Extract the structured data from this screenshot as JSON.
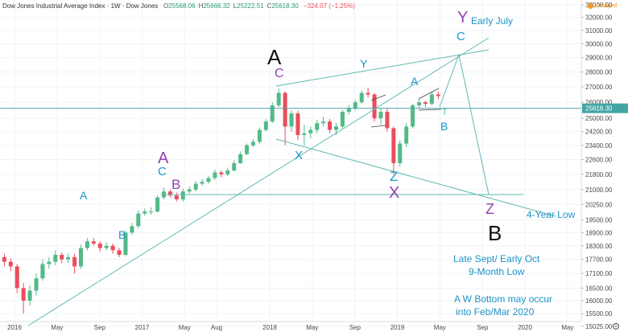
{
  "header": {
    "title": "Dow Jones Industrial Average Index · 1W · Dow Jones",
    "ohlc": [
      {
        "key": "O",
        "value": "25568.06"
      },
      {
        "key": "H",
        "value": "25666.32"
      },
      {
        "key": "L",
        "value": "25222.51"
      },
      {
        "key": "C",
        "value": "25618.30"
      }
    ],
    "change": "−324.07 (−1.25%)",
    "status": "Delayed"
  },
  "chart_data": {
    "type": "candlestick",
    "log_scale": true,
    "grid": true,
    "up_color": "#53b987",
    "down_color": "#eb4d5c",
    "xlim": [
      2015.886,
      2020.441
    ],
    "ylim": [
      14820,
      33390
    ],
    "xticks": [
      {
        "value": 2016,
        "label": "2016"
      },
      {
        "value": 2016.333,
        "label": "May"
      },
      {
        "value": 2016.667,
        "label": "Sep"
      },
      {
        "value": 2017,
        "label": "2017"
      },
      {
        "value": 2017.333,
        "label": "May"
      },
      {
        "value": 2017.583,
        "label": "Aug"
      },
      {
        "value": 2018,
        "label": "2018"
      },
      {
        "value": 2018.333,
        "label": "May"
      },
      {
        "value": 2018.667,
        "label": "Sep"
      },
      {
        "value": 2019,
        "label": "2019"
      },
      {
        "value": 2019.333,
        "label": "May"
      },
      {
        "value": 2019.667,
        "label": "Sep"
      },
      {
        "value": 2020,
        "label": "2020"
      },
      {
        "value": 2020.333,
        "label": "May"
      }
    ],
    "yticks": [
      {
        "value": 33000,
        "label": "33000.00"
      },
      {
        "value": 32000,
        "label": "32000.00"
      },
      {
        "value": 31000,
        "label": "31000.00"
      },
      {
        "value": 30000,
        "label": "30000.00"
      },
      {
        "value": 29000,
        "label": "29000.00"
      },
      {
        "value": 28000,
        "label": "28000.00"
      },
      {
        "value": 27000,
        "label": "27000.00"
      },
      {
        "value": 26000,
        "label": "26000.00"
      },
      {
        "value": 25000,
        "label": "25000.00"
      },
      {
        "value": 24200,
        "label": "24200.00"
      },
      {
        "value": 23400,
        "label": "23400.00"
      },
      {
        "value": 22600,
        "label": "22600.00"
      },
      {
        "value": 21800,
        "label": "21800.00"
      },
      {
        "value": 21000,
        "label": "21000.00"
      },
      {
        "value": 20250,
        "label": "20250.00"
      },
      {
        "value": 19500,
        "label": "19500.00"
      },
      {
        "value": 18900,
        "label": "18900.00"
      },
      {
        "value": 18300,
        "label": "18300.00"
      },
      {
        "value": 17700,
        "label": "17700.00"
      },
      {
        "value": 17100,
        "label": "17100.00"
      },
      {
        "value": 16500,
        "label": "16500.00"
      },
      {
        "value": 16000,
        "label": "16000.00"
      },
      {
        "value": 15500,
        "label": "15500.00"
      },
      {
        "value": 15025,
        "label": "15025.00"
      }
    ],
    "last_price": {
      "value": 25618.3,
      "label": "25618.30"
    },
    "x": [
      2015.92,
      2015.97,
      2016.02,
      2016.07,
      2016.12,
      2016.17,
      2016.22,
      2016.27,
      2016.32,
      2016.37,
      2016.42,
      2016.47,
      2016.52,
      2016.57,
      2016.62,
      2016.67,
      2016.72,
      2016.77,
      2016.82,
      2016.87,
      2016.92,
      2016.97,
      2017.02,
      2017.07,
      2017.12,
      2017.17,
      2017.22,
      2017.27,
      2017.32,
      2017.37,
      2017.42,
      2017.47,
      2017.52,
      2017.57,
      2017.62,
      2017.67,
      2017.72,
      2017.77,
      2017.82,
      2017.87,
      2017.92,
      2017.97,
      2018.02,
      2018.07,
      2018.12,
      2018.17,
      2018.22,
      2018.27,
      2018.32,
      2018.37,
      2018.42,
      2018.47,
      2018.52,
      2018.57,
      2018.62,
      2018.67,
      2018.72,
      2018.77,
      2018.82,
      2018.87,
      2018.92,
      2018.97,
      2019.02,
      2019.07,
      2019.12,
      2019.17,
      2019.22,
      2019.27,
      2019.32,
      2019.37
    ],
    "ohlc": [
      [
        17800,
        17950,
        17400,
        17600
      ],
      [
        17600,
        17750,
        17200,
        17400
      ],
      [
        17400,
        17500,
        16300,
        16500
      ],
      [
        16500,
        16700,
        15500,
        16000
      ],
      [
        16000,
        16600,
        15800,
        16400
      ],
      [
        16400,
        17100,
        16200,
        16900
      ],
      [
        16900,
        17700,
        16800,
        17500
      ],
      [
        17500,
        17800,
        17300,
        17600
      ],
      [
        17600,
        18100,
        17450,
        17900
      ],
      [
        17900,
        18000,
        17550,
        17700
      ],
      [
        17700,
        17950,
        17550,
        17800
      ],
      [
        17800,
        17950,
        17100,
        17400
      ],
      [
        17400,
        18350,
        17300,
        18200
      ],
      [
        18200,
        18650,
        18100,
        18500
      ],
      [
        18500,
        18650,
        18300,
        18400
      ],
      [
        18400,
        18500,
        18050,
        18200
      ],
      [
        18200,
        18450,
        18100,
        18300
      ],
      [
        18300,
        18400,
        17950,
        18100
      ],
      [
        18100,
        18200,
        17800,
        17900
      ],
      [
        17900,
        19000,
        17850,
        18900
      ],
      [
        18900,
        19350,
        18800,
        19200
      ],
      [
        19200,
        19950,
        19100,
        19800
      ],
      [
        19800,
        20050,
        19700,
        19900
      ],
      [
        19900,
        20100,
        19750,
        19900
      ],
      [
        19900,
        20700,
        19850,
        20600
      ],
      [
        20600,
        21100,
        20500,
        20900
      ],
      [
        20900,
        21000,
        20600,
        20700
      ],
      [
        20700,
        20850,
        20400,
        20500
      ],
      [
        20500,
        21050,
        20400,
        20900
      ],
      [
        20900,
        21150,
        20800,
        21000
      ],
      [
        21000,
        21450,
        20900,
        21300
      ],
      [
        21300,
        21550,
        21200,
        21400
      ],
      [
        21400,
        21700,
        21300,
        21600
      ],
      [
        21600,
        22050,
        21500,
        21900
      ],
      [
        21900,
        22000,
        21650,
        21800
      ],
      [
        21800,
        22150,
        21700,
        22000
      ],
      [
        22000,
        22550,
        21950,
        22400
      ],
      [
        22400,
        23050,
        22350,
        22900
      ],
      [
        22900,
        23500,
        22850,
        23400
      ],
      [
        23400,
        23750,
        23300,
        23600
      ],
      [
        23600,
        24450,
        23500,
        24300
      ],
      [
        24300,
        24950,
        24200,
        24800
      ],
      [
        24800,
        26000,
        24700,
        25800
      ],
      [
        25800,
        26900,
        25700,
        26600
      ],
      [
        26600,
        26700,
        23400,
        24500
      ],
      [
        24500,
        25500,
        24200,
        25300
      ],
      [
        25300,
        25450,
        23700,
        24000
      ],
      [
        24000,
        24600,
        23400,
        24100
      ],
      [
        24100,
        24500,
        23800,
        24300
      ],
      [
        24300,
        24900,
        24100,
        24700
      ],
      [
        24700,
        25100,
        24500,
        24800
      ],
      [
        24800,
        24950,
        24100,
        24300
      ],
      [
        24300,
        24700,
        24000,
        24500
      ],
      [
        24500,
        25500,
        24400,
        25400
      ],
      [
        25400,
        25800,
        25200,
        25600
      ],
      [
        25600,
        26150,
        25500,
        26000
      ],
      [
        26000,
        26750,
        25900,
        26600
      ],
      [
        26600,
        26950,
        26300,
        26500
      ],
      [
        26500,
        26600,
        24800,
        25000
      ],
      [
        25000,
        25600,
        24600,
        25400
      ],
      [
        25400,
        25600,
        24200,
        24400
      ],
      [
        24400,
        24500,
        21800,
        22400
      ],
      [
        22400,
        23700,
        22200,
        23500
      ],
      [
        23500,
        24700,
        23300,
        24500
      ],
      [
        24500,
        25900,
        24400,
        25800
      ],
      [
        25800,
        26200,
        25600,
        26000
      ],
      [
        26000,
        26100,
        25700,
        25900
      ],
      [
        25900,
        26700,
        25800,
        26500
      ],
      [
        26500,
        26700,
        26200,
        26400
      ],
      [
        25568.06,
        25666.32,
        25222.51,
        25618.3
      ]
    ],
    "annotations": [
      "Y",
      "Early July",
      "C",
      "A",
      "C",
      "Y",
      "A",
      "X",
      "B",
      "Z",
      "X",
      "A",
      "C",
      "B",
      "A",
      "B",
      "Z",
      "4-Year Low",
      "B",
      "Late Sept/ Early Oct",
      "9-Month Low",
      "A W Bottom may occur",
      "into Feb/Mar 2020"
    ]
  }
}
